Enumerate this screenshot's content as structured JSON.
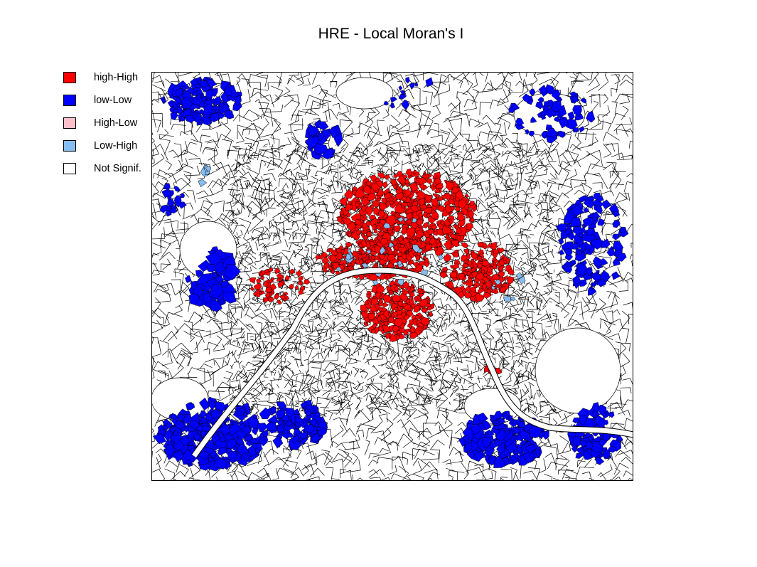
{
  "title": "HRE - Local Moran's I",
  "legend": {
    "items": [
      {
        "label": "high-High",
        "color": "#ff0000"
      },
      {
        "label": "low-Low",
        "color": "#0000ff"
      },
      {
        "label": "High-Low",
        "color": "#ffc0cb"
      },
      {
        "label": "Low-High",
        "color": "#87bdf0"
      },
      {
        "label": "Not Signif.",
        "color": "#ffffff"
      }
    ]
  },
  "map": {
    "description_free": true,
    "background": "#ffffff",
    "border_color": "#000000",
    "cluster_colors": {
      "high_high": "#ff0000",
      "low_low": "#0000ff",
      "high_low": "#ffc0cb",
      "low_high": "#87bdf0"
    }
  }
}
